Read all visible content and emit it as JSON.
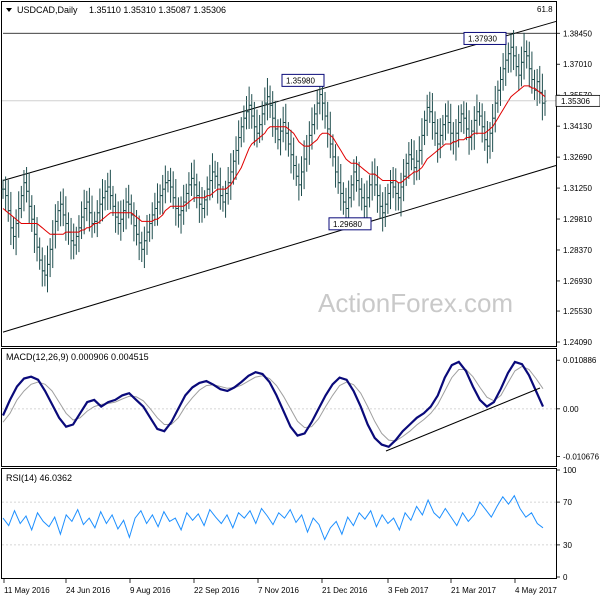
{
  "chart_data": [
    {
      "type": "candlestick",
      "title": "USDCAD,Daily",
      "ohlc_header": "1.35110 1.35310 1.35087 1.35306",
      "last_price": "1.35306",
      "ylim": [
        1.2409,
        1.393
      ],
      "y_ticks": [
        "1.38450",
        "1.37010",
        "1.35570",
        "1.34130",
        "1.32690",
        "1.31250",
        "1.29810",
        "1.28370",
        "1.26930",
        "1.25530",
        "1.24090"
      ],
      "x_ticks": [
        "11 May 2016",
        "24 Jun 2016",
        "9 Aug 2016",
        "22 Sep 2016",
        "7 Nov 2016",
        "21 Dec 2016",
        "3 Feb 2017",
        "21 Mar 2017",
        "4 May 2017"
      ],
      "annotations": [
        {
          "label": "1.35980",
          "value": 1.3598
        },
        {
          "label": "1.29680",
          "value": 1.2968
        },
        {
          "label": "1.37930",
          "value": 1.3793
        }
      ],
      "fib_label": "61.8",
      "price_path": [
        1.312,
        1.309,
        1.302,
        1.294,
        1.29,
        1.296,
        1.303,
        1.309,
        1.315,
        1.311,
        1.304,
        1.298,
        1.291,
        1.285,
        1.279,
        1.274,
        1.272,
        1.277,
        1.284,
        1.291,
        1.297,
        1.302,
        1.305,
        1.3,
        1.296,
        1.292,
        1.288,
        1.286,
        1.29,
        1.294,
        1.299,
        1.303,
        1.306,
        1.301,
        1.296,
        1.297,
        1.301,
        1.305,
        1.308,
        1.311,
        1.313,
        1.309,
        1.304,
        1.299,
        1.296,
        1.298,
        1.302,
        1.306,
        1.305,
        1.3,
        1.295,
        1.291,
        1.287,
        1.284,
        1.288,
        1.292,
        1.296,
        1.3,
        1.303,
        1.306,
        1.309,
        1.312,
        1.315,
        1.316,
        1.313,
        1.308,
        1.303,
        1.3,
        1.302,
        1.306,
        1.31,
        1.314,
        1.317,
        1.314,
        1.309,
        1.305,
        1.303,
        1.307,
        1.312,
        1.316,
        1.32,
        1.318,
        1.314,
        1.309,
        1.306,
        1.31,
        1.315,
        1.32,
        1.325,
        1.33,
        1.336,
        1.341,
        1.345,
        1.348,
        1.351,
        1.346,
        1.341,
        1.338,
        1.342,
        1.347,
        1.352,
        1.355,
        1.351,
        1.345,
        1.34,
        1.335,
        1.339,
        1.343,
        1.338,
        1.333,
        1.328,
        1.323,
        1.318,
        1.314,
        1.32,
        1.326,
        1.332,
        1.337,
        1.342,
        1.347,
        1.352,
        1.356,
        1.352,
        1.346,
        1.34,
        1.333,
        1.327,
        1.32,
        1.315,
        1.31,
        1.306,
        1.303,
        1.308,
        1.314,
        1.32,
        1.316,
        1.312,
        1.308,
        1.304,
        1.308,
        1.314,
        1.319,
        1.314,
        1.309,
        1.304,
        1.301,
        1.305,
        1.31,
        1.315,
        1.313,
        1.31,
        1.308,
        1.313,
        1.318,
        1.324,
        1.328,
        1.326,
        1.322,
        1.325,
        1.33,
        1.337,
        1.344,
        1.35,
        1.348,
        1.343,
        1.338,
        1.333,
        1.337,
        1.342,
        1.346,
        1.343,
        1.338,
        1.334,
        1.338,
        1.343,
        1.347,
        1.345,
        1.34,
        1.336,
        1.339,
        1.344,
        1.348,
        1.346,
        1.341,
        1.335,
        1.332,
        1.338,
        1.345,
        1.352,
        1.358,
        1.363,
        1.368,
        1.372,
        1.375,
        1.378,
        1.374,
        1.369,
        1.365,
        1.371,
        1.376,
        1.374,
        1.368,
        1.363,
        1.358,
        1.362,
        1.357,
        1.352,
        1.353
      ],
      "ma_path": [
        1.303,
        1.302,
        1.301,
        1.3,
        1.299,
        1.298,
        1.297,
        1.296,
        1.296,
        1.296,
        1.296,
        1.296,
        1.296,
        1.296,
        1.295,
        1.294,
        1.293,
        1.292,
        1.291,
        1.291,
        1.291,
        1.291,
        1.291,
        1.291,
        1.292,
        1.292,
        1.292,
        1.292,
        1.292,
        1.292,
        1.293,
        1.293,
        1.294,
        1.294,
        1.295,
        1.296,
        1.296,
        1.297,
        1.298,
        1.299,
        1.3,
        1.301,
        1.301,
        1.301,
        1.301,
        1.301,
        1.301,
        1.301,
        1.301,
        1.301,
        1.3,
        1.299,
        1.298,
        1.297,
        1.297,
        1.297,
        1.297,
        1.297,
        1.298,
        1.298,
        1.299,
        1.3,
        1.302,
        1.303,
        1.304,
        1.304,
        1.304,
        1.304,
        1.304,
        1.304,
        1.305,
        1.306,
        1.307,
        1.308,
        1.308,
        1.308,
        1.308,
        1.308,
        1.309,
        1.309,
        1.31,
        1.311,
        1.312,
        1.312,
        1.312,
        1.312,
        1.313,
        1.314,
        1.316,
        1.318,
        1.32,
        1.322,
        1.325,
        1.328,
        1.331,
        1.333,
        1.334,
        1.335,
        1.336,
        1.337,
        1.338,
        1.34,
        1.341,
        1.341,
        1.341,
        1.341,
        1.341,
        1.341,
        1.341,
        1.34,
        1.339,
        1.338,
        1.336,
        1.334,
        1.333,
        1.332,
        1.332,
        1.332,
        1.333,
        1.334,
        1.335,
        1.337,
        1.338,
        1.338,
        1.338,
        1.337,
        1.336,
        1.334,
        1.332,
        1.33,
        1.328,
        1.326,
        1.325,
        1.324,
        1.324,
        1.324,
        1.323,
        1.322,
        1.321,
        1.32,
        1.319,
        1.319,
        1.319,
        1.318,
        1.317,
        1.316,
        1.316,
        1.316,
        1.316,
        1.316,
        1.316,
        1.315,
        1.315,
        1.316,
        1.317,
        1.318,
        1.319,
        1.32,
        1.32,
        1.321,
        1.322,
        1.324,
        1.326,
        1.327,
        1.328,
        1.329,
        1.33,
        1.331,
        1.332,
        1.333,
        1.333,
        1.333,
        1.334,
        1.334,
        1.335,
        1.335,
        1.335,
        1.336,
        1.336,
        1.337,
        1.338,
        1.338,
        1.338,
        1.338,
        1.338,
        1.339,
        1.34,
        1.341,
        1.343,
        1.345,
        1.347,
        1.349,
        1.351,
        1.353,
        1.355,
        1.356,
        1.357,
        1.358,
        1.359,
        1.36,
        1.36,
        1.36,
        1.359,
        1.359,
        1.358,
        1.357,
        1.356,
        1.355
      ]
    },
    {
      "type": "line",
      "title": "MACD(12,26,9) 0.000906 0.004515",
      "ylim": [
        -0.0119,
        0.0125
      ],
      "y_ticks": [
        "0.010886",
        "0.00",
        "-0.010676"
      ],
      "series": [
        {
          "name": "MACD",
          "values": [
            -0.0015,
            0.002,
            0.005,
            0.0068,
            0.0072,
            0.0065,
            0.004,
            0.001,
            -0.002,
            -0.004,
            -0.0035,
            -0.001,
            0.0015,
            0.002,
            0.0005,
            0.0015,
            0.002,
            0.003,
            0.0035,
            0.002,
            0.0005,
            -0.002,
            -0.0045,
            -0.005,
            -0.003,
            0.0,
            0.003,
            0.0048,
            0.0058,
            0.0062,
            0.0054,
            0.0044,
            0.004,
            0.0048,
            0.006,
            0.0074,
            0.0082,
            0.0078,
            0.006,
            0.003,
            -0.0005,
            -0.004,
            -0.006,
            -0.0055,
            -0.003,
            0.0,
            0.003,
            0.0055,
            0.007,
            0.0065,
            0.004,
            0.0005,
            -0.0035,
            -0.0065,
            -0.008,
            -0.0085,
            -0.007,
            -0.005,
            -0.0035,
            -0.002,
            -0.001,
            0.0005,
            0.003,
            0.007,
            0.0098,
            0.0105,
            0.0085,
            0.005,
            0.002,
            0.0005,
            0.0015,
            0.0045,
            0.008,
            0.0105,
            0.01,
            0.0075,
            0.004,
            0.0005
          ]
        },
        {
          "name": "Signal",
          "values": [
            -0.003,
            -0.001,
            0.002,
            0.004,
            0.0055,
            0.006,
            0.0055,
            0.004,
            0.0015,
            -0.001,
            -0.0025,
            -0.002,
            -0.0005,
            0.0005,
            0.001,
            0.0012,
            0.0015,
            0.0022,
            0.0028,
            0.0027,
            0.0018,
            0.0,
            -0.002,
            -0.0035,
            -0.0035,
            -0.002,
            0.0005,
            0.0025,
            0.0042,
            0.0052,
            0.0054,
            0.005,
            0.0046,
            0.0047,
            0.0053,
            0.0062,
            0.0071,
            0.0074,
            0.0068,
            0.0052,
            0.0028,
            0.0,
            -0.0028,
            -0.0042,
            -0.004,
            -0.0022,
            0.0005,
            0.003,
            0.0052,
            0.006,
            0.0054,
            0.0035,
            0.0005,
            -0.0028,
            -0.0055,
            -0.007,
            -0.0072,
            -0.0062,
            -0.005,
            -0.0036,
            -0.0024,
            -0.001,
            0.001,
            0.004,
            0.007,
            0.0088,
            0.0088,
            0.0072,
            0.0048,
            0.0026,
            0.0018,
            0.003,
            0.0058,
            0.0085,
            0.0095,
            0.0088,
            0.0068,
            0.0045
          ]
        }
      ]
    },
    {
      "type": "line",
      "title": "RSI(14) 46.0362",
      "ylim": [
        0,
        100
      ],
      "y_ticks": [
        "100",
        "70",
        "30",
        "0"
      ],
      "series": [
        {
          "name": "RSI",
          "values": [
            55,
            48,
            62,
            50,
            57,
            44,
            60,
            52,
            47,
            56,
            40,
            58,
            52,
            63,
            49,
            55,
            46,
            61,
            50,
            58,
            45,
            53,
            37,
            55,
            62,
            50,
            58,
            47,
            61,
            52,
            55,
            44,
            60,
            53,
            59,
            48,
            63,
            56,
            50,
            58,
            46,
            60,
            55,
            62,
            50,
            64,
            57,
            49,
            60,
            55,
            63,
            51,
            58,
            42,
            55,
            49,
            35,
            46,
            52,
            40,
            56,
            48,
            60,
            54,
            62,
            47,
            58,
            50,
            55,
            44,
            60,
            53,
            66,
            58,
            72,
            60,
            55,
            64,
            56,
            48,
            60,
            52,
            58,
            70,
            63,
            56,
            66,
            75,
            68,
            76,
            64,
            56,
            60,
            50,
            46
          ]
        }
      ]
    }
  ]
}
